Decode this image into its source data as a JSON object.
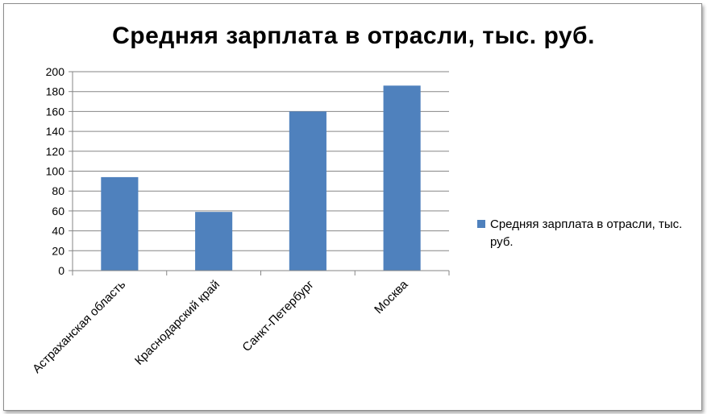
{
  "chart_data": {
    "type": "bar",
    "title": "Средняя зарплата в отрасли, тыс. руб.",
    "categories": [
      "Астраханская область",
      "Краснодарский край",
      "Санкт-Петербург",
      "Москва"
    ],
    "series": [
      {
        "name": "Средняя зарплата в отрасли, тыс. руб.",
        "values": [
          94,
          59,
          160,
          186
        ],
        "color": "#4f81bd"
      }
    ],
    "yticks": [
      0,
      20,
      40,
      60,
      80,
      100,
      120,
      140,
      160,
      180,
      200
    ],
    "ylim": [
      0,
      200
    ],
    "grid": true,
    "legend_position": "right"
  }
}
